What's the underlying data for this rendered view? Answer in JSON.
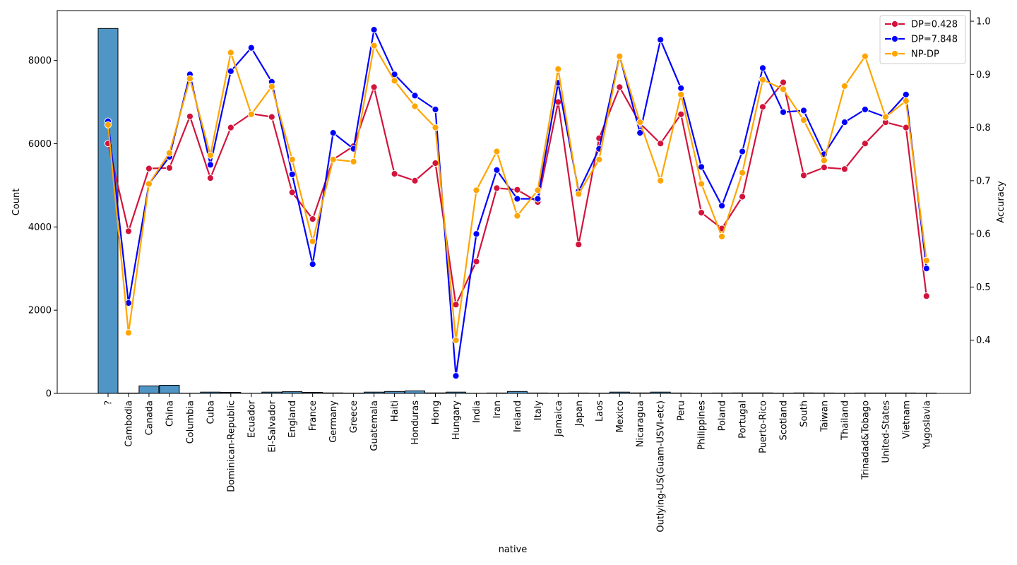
{
  "chart_data": {
    "type": "bar+line",
    "xlabel": "native",
    "ylabel_left": "Count",
    "ylabel_right": "Accuracy",
    "ylim_left": [
      0,
      9200
    ],
    "ylim_right": [
      0.3,
      1.02
    ],
    "yticks_left": [
      "0",
      "2000",
      "4000",
      "6000",
      "8000"
    ],
    "yticks_left_values": [
      0,
      2000,
      4000,
      6000,
      8000
    ],
    "yticks_right": [
      "0.4",
      "0.5",
      "0.6",
      "0.7",
      "0.8",
      "0.9",
      "1.0"
    ],
    "yticks_right_values": [
      0.4,
      0.5,
      0.6,
      0.7,
      0.8,
      0.9,
      1.0
    ],
    "legend_position": "top-right",
    "categories": [
      "?",
      "Cambodia",
      "Canada",
      "China",
      "Columbia",
      "Cuba",
      "Dominican-Republic",
      "Ecuador",
      "El-Salvador",
      "England",
      "France",
      "Germany",
      "Greece",
      "Guatemala",
      "Haiti",
      "Honduras",
      "Hong",
      "Hungary",
      "India",
      "Iran",
      "Ireland",
      "Italy",
      "Jamaica",
      "Japan",
      "Laos",
      "Mexico",
      "Nicaragua",
      "Outlying-US(Guam-USVI-etc)",
      "Peru",
      "Philippines",
      "Poland",
      "Portugal",
      "Puerto-Rico",
      "Scotland",
      "South",
      "Taiwan",
      "Thailand",
      "Trinadad&Tobago",
      "United-States",
      "Vietnam",
      "Yugoslavia"
    ],
    "counts": [
      8770,
      8,
      180,
      195,
      5,
      30,
      25,
      4,
      30,
      40,
      25,
      12,
      8,
      30,
      45,
      60,
      12,
      30,
      5,
      10,
      45,
      10,
      8,
      10,
      8,
      30,
      12,
      30,
      10,
      8,
      10,
      12,
      12,
      8,
      12,
      10,
      8,
      10,
      10,
      10,
      8
    ],
    "bar_color": "#4f96c6",
    "series": [
      {
        "name": "DP=0.428",
        "color": "#d2143c",
        "values": [
          0.77,
          0.605,
          0.723,
          0.724,
          0.821,
          0.705,
          0.8,
          0.826,
          0.82,
          0.678,
          0.628,
          0.74,
          0.765,
          0.876,
          0.713,
          0.7,
          0.733,
          0.467,
          0.548,
          0.686,
          0.683,
          0.66,
          0.848,
          0.58,
          0.78,
          0.876,
          0.808,
          0.77,
          0.825,
          0.64,
          0.61,
          0.67,
          0.839,
          0.885,
          0.71,
          0.725,
          0.722,
          0.77,
          0.81,
          0.8,
          0.483
        ]
      },
      {
        "name": "DP=7.848",
        "color": "#0000ff",
        "values": [
          0.812,
          0.47,
          0.694,
          0.745,
          0.9,
          0.73,
          0.906,
          0.95,
          0.886,
          0.712,
          0.543,
          0.79,
          0.76,
          0.984,
          0.9,
          0.86,
          0.834,
          0.333,
          0.6,
          0.72,
          0.666,
          0.666,
          0.884,
          0.68,
          0.76,
          0.935,
          0.79,
          0.965,
          0.874,
          0.726,
          0.653,
          0.755,
          0.912,
          0.829,
          0.832,
          0.75,
          0.81,
          0.834,
          0.82,
          0.862,
          0.535
        ]
      },
      {
        "name": "NP-DP",
        "color": "#ffa500",
        "values": [
          0.805,
          0.414,
          0.694,
          0.752,
          0.892,
          0.748,
          0.941,
          0.825,
          0.877,
          0.74,
          0.586,
          0.74,
          0.736,
          0.954,
          0.888,
          0.84,
          0.8,
          0.4,
          0.682,
          0.755,
          0.634,
          0.682,
          0.91,
          0.675,
          0.74,
          0.934,
          0.81,
          0.7,
          0.862,
          0.694,
          0.595,
          0.715,
          0.89,
          0.872,
          0.814,
          0.738,
          0.878,
          0.934,
          0.82,
          0.85,
          0.55
        ]
      }
    ]
  }
}
